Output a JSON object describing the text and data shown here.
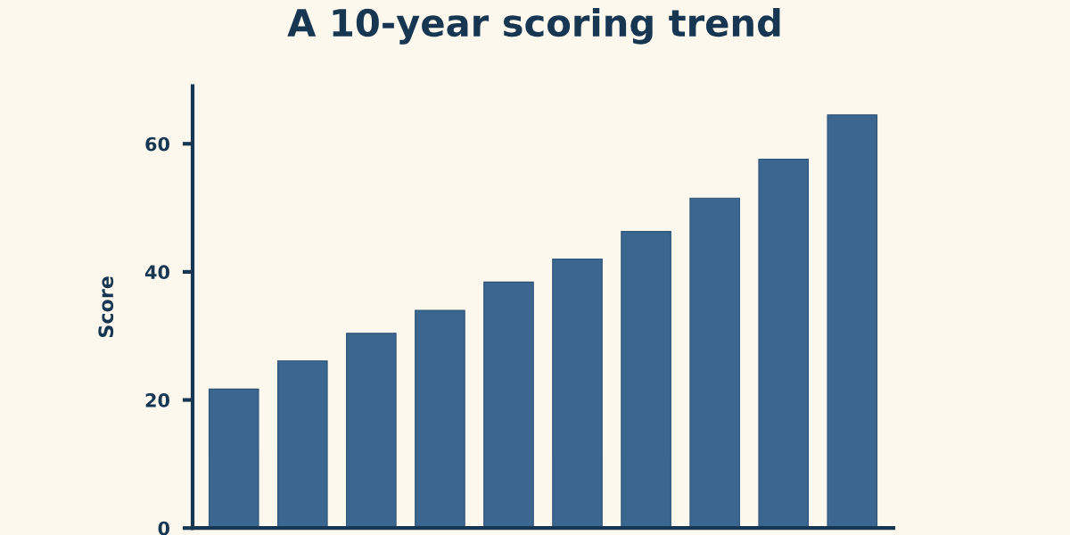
{
  "chart_data": {
    "type": "bar",
    "title": "A 10-year scoring trend",
    "ylabel": "Score",
    "categories": [
      null,
      null,
      null,
      null,
      null,
      null,
      null,
      null,
      null,
      null
    ],
    "values": [
      21.7,
      26.1,
      30.4,
      34.0,
      38.4,
      42.0,
      46.3,
      51.5,
      57.6,
      64.5
    ],
    "color": "#3a6690",
    "ylim": [
      0,
      69
    ],
    "yticks": [
      0,
      20,
      40,
      60
    ],
    "grid": false
  }
}
